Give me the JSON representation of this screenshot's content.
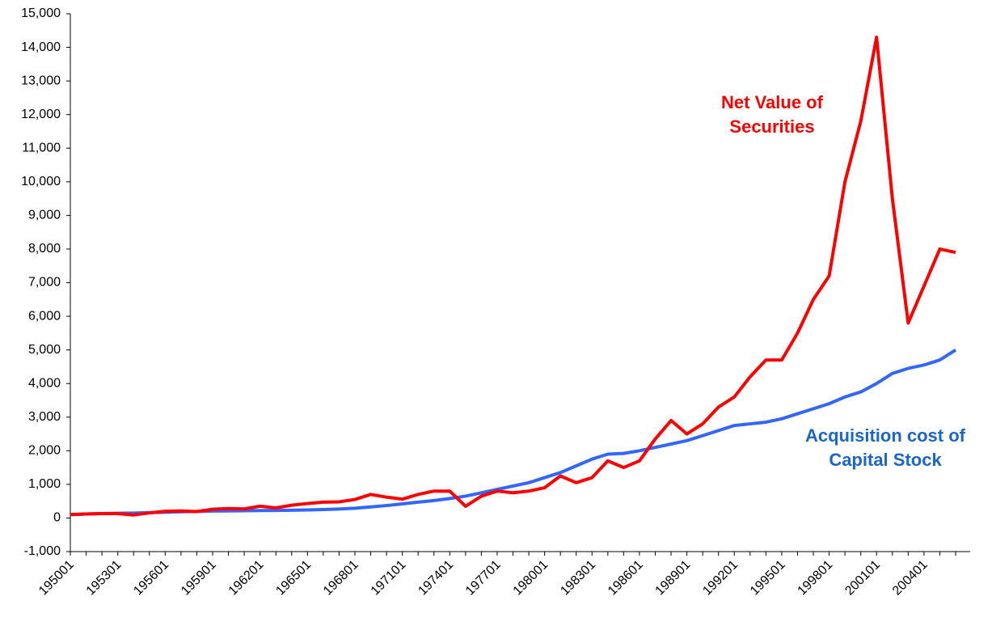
{
  "chart_data": {
    "type": "line",
    "categories": [
      "195001",
      null,
      null,
      "195301",
      null,
      null,
      "195601",
      null,
      null,
      "195901",
      null,
      null,
      "196201",
      null,
      null,
      "196501",
      null,
      null,
      "196801",
      null,
      null,
      "197101",
      null,
      null,
      "197401",
      null,
      null,
      "197701",
      null,
      null,
      "198001",
      null,
      null,
      "198301",
      null,
      null,
      "198601",
      null,
      null,
      "198901",
      null,
      null,
      "199201",
      null,
      null,
      "199501",
      null,
      null,
      "199801",
      null,
      null,
      "200101",
      null,
      null,
      "200401",
      null,
      null
    ],
    "series": [
      {
        "name": "Net Value of Securities",
        "color": "#ff0000",
        "values": [
          100,
          120,
          130,
          130,
          90,
          150,
          200,
          210,
          190,
          260,
          280,
          270,
          350,
          300,
          380,
          430,
          470,
          480,
          550,
          700,
          620,
          560,
          700,
          800,
          800,
          350,
          650,
          800,
          750,
          800,
          900,
          1250,
          1050,
          1200,
          1700,
          1500,
          1700,
          2350,
          2900,
          2500,
          2800,
          3300,
          3600,
          4200,
          4700,
          4700,
          5500,
          6500,
          7200,
          10000,
          11800,
          14300,
          9500,
          5800,
          6900,
          8000,
          7900
        ]
      },
      {
        "name": "Acquisition cost of Capital Stock",
        "color": "#3366ff",
        "values": [
          100,
          120,
          130,
          140,
          145,
          160,
          170,
          185,
          195,
          205,
          210,
          215,
          220,
          225,
          230,
          240,
          250,
          265,
          290,
          330,
          370,
          420,
          470,
          520,
          580,
          650,
          750,
          850,
          950,
          1050,
          1200,
          1350,
          1550,
          1750,
          1900,
          1920,
          2000,
          2100,
          2200,
          2300,
          2450,
          2600,
          2750,
          2800,
          2850,
          2950,
          3100,
          3250,
          3400,
          3600,
          3750,
          4000,
          4300,
          4450,
          4550,
          4700,
          5000
        ]
      }
    ],
    "ylim": [
      -1000,
      15000
    ],
    "yticks": [
      {
        "value": -1000,
        "label": "-1,000"
      },
      0,
      {
        "value": 1000,
        "label": "1,000"
      },
      {
        "value": 2000,
        "label": "2,000"
      },
      {
        "value": 3000,
        "label": "3,000"
      },
      {
        "value": 4000,
        "label": "4,000"
      },
      {
        "value": 5000,
        "label": "5,000"
      },
      {
        "value": 6000,
        "label": "6,000"
      },
      {
        "value": 7000,
        "label": "7,000"
      },
      {
        "value": 8000,
        "label": "8,000"
      },
      {
        "value": 9000,
        "label": "9,000"
      },
      {
        "value": 10000,
        "label": "10,000"
      },
      {
        "value": 11000,
        "label": "11,000"
      },
      {
        "value": 12000,
        "label": "12,000"
      },
      {
        "value": 13000,
        "label": "13,000"
      },
      {
        "value": 14000,
        "label": "14,000"
      },
      {
        "value": 15000,
        "label": "15,000"
      }
    ],
    "grid": false
  }
}
